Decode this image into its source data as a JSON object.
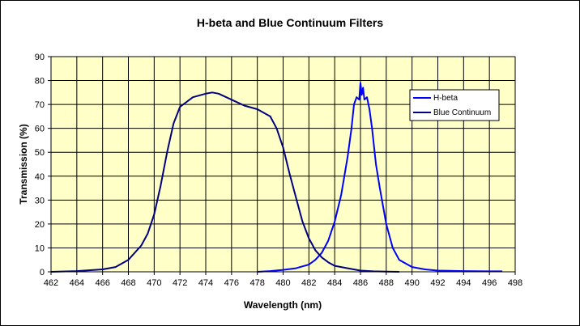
{
  "chart_data": {
    "type": "line",
    "title": "H-beta and Blue Continuum Filters",
    "xlabel": "Wavelength (nm)",
    "ylabel": "Transmission (%)",
    "xlim": [
      462,
      498
    ],
    "ylim": [
      0,
      90
    ],
    "xticks": [
      "462",
      "464",
      "466",
      "468",
      "470",
      "472",
      "474",
      "476",
      "478",
      "480",
      "482",
      "484",
      "486",
      "488",
      "490",
      "492",
      "494",
      "496",
      "498"
    ],
    "yticks": [
      "0",
      "10",
      "20",
      "30",
      "40",
      "50",
      "60",
      "70",
      "80",
      "90"
    ],
    "grid": true,
    "legend_position": "top-right",
    "series": [
      {
        "name": "H-beta",
        "color": "#0000ff",
        "x": [
          478,
          479,
          480,
          481,
          482,
          482.5,
          483,
          483.5,
          484,
          484.5,
          485,
          485.3,
          485.5,
          485.7,
          485.9,
          486.0,
          486.1,
          486.2,
          486.3,
          486.5,
          486.7,
          486.9,
          487.2,
          487.5,
          488,
          488.5,
          489,
          490,
          491,
          492,
          494,
          496,
          497
        ],
        "y": [
          0,
          0.3,
          0.8,
          1.5,
          3,
          5,
          8,
          13,
          21,
          32,
          48,
          60,
          70,
          73,
          72,
          79,
          74,
          77,
          72,
          73,
          68,
          60,
          45,
          35,
          20,
          10,
          5,
          2,
          1,
          0.5,
          0.3,
          0.2,
          0.2
        ]
      },
      {
        "name": "Blue Continuum",
        "color": "#000080",
        "x": [
          462,
          464,
          466,
          467,
          468,
          469,
          469.5,
          470,
          470.5,
          471,
          471.5,
          472,
          473,
          474,
          474.5,
          475,
          476,
          477,
          478,
          479,
          479.5,
          480,
          480.5,
          481,
          481.5,
          482,
          482.5,
          483,
          483.5,
          484,
          485,
          486,
          487,
          488,
          489
        ],
        "y": [
          0,
          0.3,
          1,
          2,
          5,
          11,
          16,
          24,
          36,
          50,
          62,
          69,
          73,
          74.5,
          75,
          74.5,
          72,
          69.5,
          68,
          65,
          60,
          52,
          41,
          31,
          21,
          14,
          9,
          6,
          4,
          2.5,
          1.5,
          0.5,
          0.2,
          0.1,
          0
        ]
      }
    ]
  }
}
